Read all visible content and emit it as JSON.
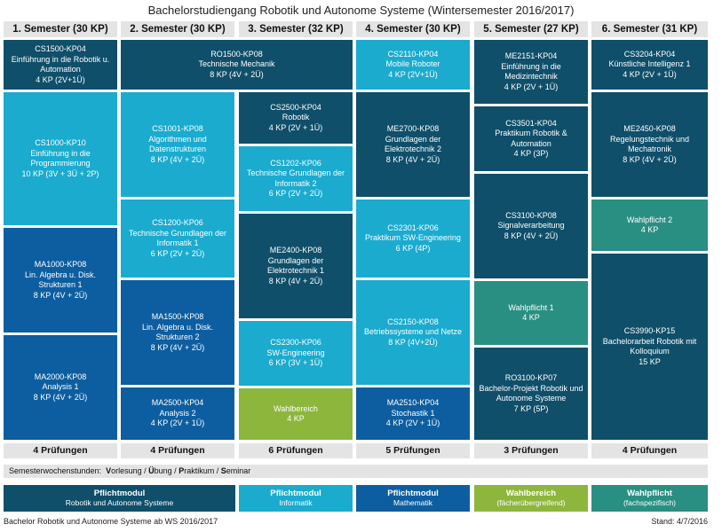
{
  "title": "Bachelorstudiengang Robotik und Autonome Systeme (Wintersemester 2016/2017)",
  "semesters": [
    {
      "header": "1. Semester (30 KP)",
      "footer": "4 Prüfungen"
    },
    {
      "header": "2. Semester (30 KP)",
      "footer": "4 Prüfungen"
    },
    {
      "header": "3. Semester (32 KP)",
      "footer": "6 Prüfungen"
    },
    {
      "header": "4. Semester (30 KP)",
      "footer": "5 Prüfungen"
    },
    {
      "header": "5. Semester (27 KP)",
      "footer": "3 Prüfungen"
    },
    {
      "header": "6. Semester (31 KP)",
      "footer": "4 Prüfungen"
    }
  ],
  "modules": {
    "cs1500": {
      "code": "CS1500-KP04",
      "name1": "Einführung in die Robotik u.",
      "name2": "Automation",
      "kp": "4 KP (2V+1Ü)"
    },
    "cs1000": {
      "code": "CS1000-KP10",
      "name1": "Einführung in die",
      "name2": "Programmierung",
      "kp": "10 KP (3V + 3Ü + 2P)"
    },
    "ma1000": {
      "code": "MA1000-KP08",
      "name1": "Lin. Algebra u. Disk.",
      "name2": "Strukturen 1",
      "kp": "8 KP (4V + 2Ü)"
    },
    "ma2000": {
      "code": "MA2000-KP08",
      "name1": "Analysis 1",
      "kp": "8 KP (4V + 2Ü)"
    },
    "ro1500": {
      "code": "RO1500-KP08",
      "name1": "Technische Mechanik",
      "kp": "8 KP (4V + 2Ü)"
    },
    "cs1001": {
      "code": "CS1001-KP08",
      "name1": "Algorithmen und",
      "name2": "Datenstrukturen",
      "kp": "8 KP (4V + 2Ü)"
    },
    "cs1200": {
      "code": "CS1200-KP06",
      "name1": "Technische Grundlagen der",
      "name2": "Informatik 1",
      "kp": "6 KP (2V + 2Ü)"
    },
    "ma1500": {
      "code": "MA1500-KP08",
      "name1": "Lin. Algebra u. Disk.",
      "name2": "Strukturen 2",
      "kp": "8 KP (4V + 2Ü)"
    },
    "ma2500": {
      "code": "MA2500-KP04",
      "name1": "Analysis 2",
      "kp": "4 KP (2V + 1Ü)"
    },
    "cs2500": {
      "code": "CS2500-KP04",
      "name1": "Robotik",
      "kp": "4 KP (2V + 1Ü)"
    },
    "cs1202": {
      "code": "CS1202-KP06",
      "name1": "Technische Grundlagen der",
      "name2": "Informatik 2",
      "kp": "6 KP (2V + 2Ü)"
    },
    "me2400": {
      "code": "ME2400-KP08",
      "name1": "Grundlagen der",
      "name2": "Elektrotechnik 1",
      "kp": "8 KP (4V + 2Ü)"
    },
    "cs2300": {
      "code": "CS2300-KP06",
      "name1": "SW-Engineering",
      "kp": "6 KP (3V + 1Ü)"
    },
    "wahlbereich": {
      "name1": "Wahlbereich",
      "kp": "4 KP"
    },
    "cs2110": {
      "code": "CS2110-KP04",
      "name1": "Mobile Roboter",
      "kp": "4 KP (2V+1Ü)"
    },
    "me2700": {
      "code": "ME2700-KP08",
      "name1": "Grundlagen der",
      "name2": "Elektrotechnik 2",
      "kp": "8 KP (4V + 2Ü)"
    },
    "cs2301": {
      "code": "CS2301-KP06",
      "name1": "Praktikum SW-Engineering",
      "kp": "6 KP (4P)"
    },
    "cs2150": {
      "code": "CS2150-KP08",
      "name1": "Betriebssysteme und Netze",
      "kp": "8 KP (4V+2Ü)"
    },
    "ma2510": {
      "code": "MA2510-KP04",
      "name1": "Stochastik 1",
      "kp": "4 KP (2V + 1Ü)"
    },
    "me2151": {
      "code": "ME2151-KP04",
      "name1": "Einführung in die",
      "name2": "Medizintechnik",
      "kp": "4 KP (2V + 1Ü)"
    },
    "cs3501": {
      "code": "CS3501-KP04",
      "name1": "Praktikum Robotik &",
      "name2": "Automation",
      "kp": "4 KP (3P)"
    },
    "cs3100": {
      "code": "CS3100-KP08",
      "name1": "Signalverarbeitung",
      "kp": "8 KP (4V + 2Ü)"
    },
    "wahlpflicht1": {
      "name1": "Wahlpflicht 1",
      "kp": "4 KP"
    },
    "ro3100": {
      "code": "RO3100-KP07",
      "name1": "Bachelor-Projekt Robotik und",
      "name2": "Autonome Systeme",
      "kp": "7 KP (5P)"
    },
    "cs3204": {
      "code": "CS3204-KP04",
      "name1": "Künstliche Intelligenz 1",
      "kp": "4 KP (2V + 1Ü)"
    },
    "me2450": {
      "code": "ME2450-KP08",
      "name1": "Regelungstechnik und",
      "name2": "Mechatronik",
      "kp": "8 KP (4V + 2Ü)"
    },
    "wahlpflicht2": {
      "name1": "Wahlpflicht 2",
      "kp": "4 KP"
    },
    "cs3990": {
      "code": "CS3990-KP15",
      "name1": "Bachelorarbeit Robotik mit",
      "name2": "Kolloquium",
      "kp": "15 KP"
    }
  },
  "sws": {
    "label": "Semesterwochenstunden:",
    "v": "V",
    "v_rest": "orlesung /",
    "u": "Ü",
    "u_rest": "bung /",
    "p": "P",
    "p_rest": "raktikum /",
    "s": "S",
    "s_rest": "eminar"
  },
  "legend": [
    {
      "title": "Pflichtmodul",
      "sub": "Robotik und Autonome Systeme",
      "color": "#0f4f6a"
    },
    {
      "title": "Pflichtmodul",
      "sub": "Informatik",
      "color": "#1aabcf"
    },
    {
      "title": "Pflichtmodul",
      "sub": "Mathematik",
      "color": "#0d5ea0"
    },
    {
      "title": "Wahlbereich",
      "sub": "(fächerübergreifend)",
      "color": "#8db63c"
    },
    {
      "title": "Wahlpflicht",
      "sub": "(fachspezifisch)",
      "color": "#2a8f83"
    }
  ],
  "footer": {
    "left": "Bachelor Robotik und Autonome Systeme ab WS 2016/2017",
    "right": "Stand: 4/7/2016"
  }
}
